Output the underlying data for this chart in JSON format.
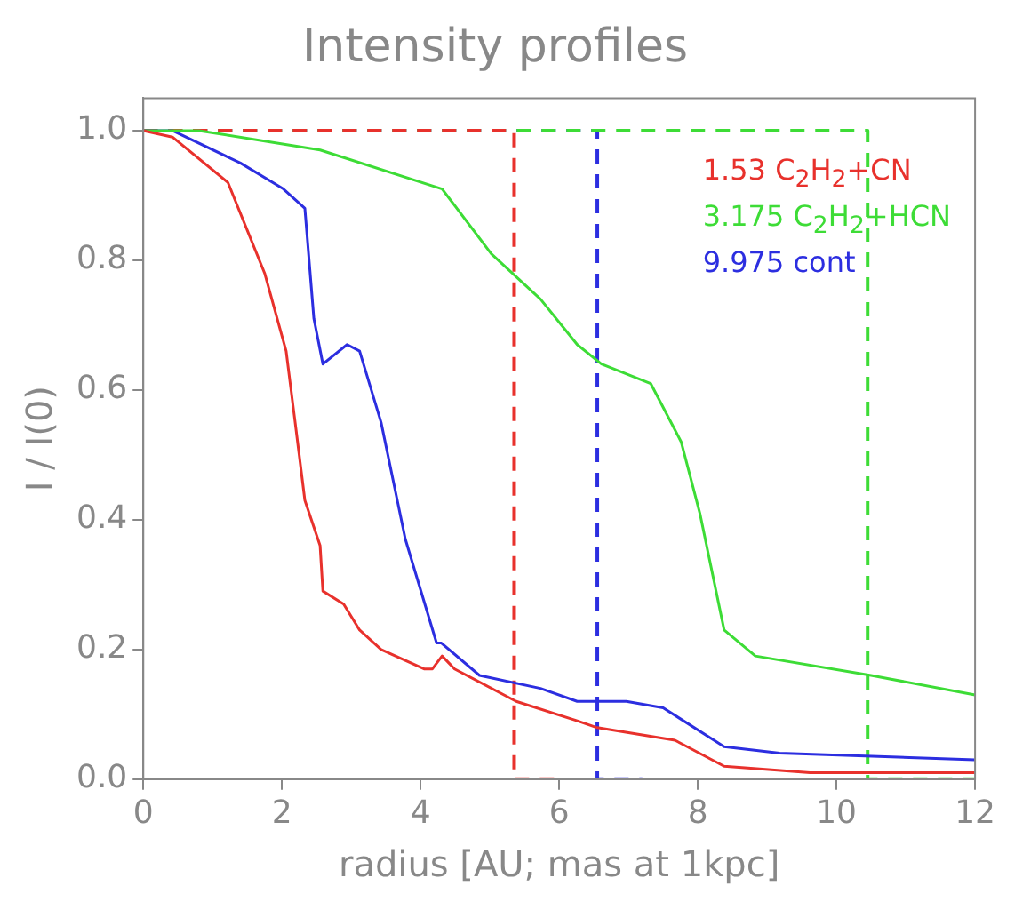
{
  "chart_data": {
    "type": "line",
    "title": "Intensity profiles",
    "xlabel": "radius [AU; mas at 1kpc]",
    "ylabel": "I / I(0)",
    "xlim": [
      0,
      12
    ],
    "xticks": [
      0,
      2,
      4,
      6,
      8,
      10,
      12
    ],
    "ylim": [
      0,
      1.05
    ],
    "yticks": [
      {
        "value": 0,
        "label": "0.0"
      },
      {
        "value": 0.2,
        "label": "0.2"
      },
      {
        "value": 0.4,
        "label": "0.4"
      },
      {
        "value": 0.6,
        "label": "0.6"
      },
      {
        "value": 0.8,
        "label": "0.8"
      },
      {
        "value": 1,
        "label": "1.0"
      }
    ],
    "grid": false,
    "legend": "top right",
    "series": [
      {
        "name": "1.53 C$_{2}$H$_{2}$+CN",
        "color": "#e8312c",
        "line_style": "solid",
        "x": [
          0,
          0.42,
          1.22,
          1.75,
          2.06,
          2.19,
          2.33,
          2.55,
          2.59,
          2.89,
          3.12,
          3.43,
          4.05,
          4.17,
          4.31,
          4.49,
          5.38,
          6.26,
          6.53,
          7.67,
          8.38,
          9.62,
          12
        ],
        "values": [
          1,
          0.99,
          0.92,
          0.78,
          0.66,
          0.55,
          0.43,
          0.36,
          0.29,
          0.27,
          0.23,
          0.2,
          0.17,
          0.17,
          0.19,
          0.17,
          0.12,
          0.09,
          0.08,
          0.06,
          0.02,
          0.01,
          0.01
        ]
      },
      {
        "name": "3.175 C$_{2}$H$_{2}$+HCN",
        "color": "#3ddc36",
        "line_style": "solid",
        "x": [
          0,
          0.8,
          2.55,
          4.31,
          5.02,
          5.73,
          6.26,
          6.61,
          7.32,
          7.76,
          8.03,
          8.38,
          8.83,
          10.5,
          12
        ],
        "values": [
          1,
          1,
          0.97,
          0.91,
          0.81,
          0.74,
          0.67,
          0.64,
          0.61,
          0.52,
          0.41,
          0.23,
          0.19,
          0.16,
          0.13
        ]
      },
      {
        "name": "9.975 cont",
        "color": "#2c2ee0",
        "line_style": "solid",
        "x": [
          0,
          0.42,
          1.4,
          2.02,
          2.33,
          2.46,
          2.59,
          2.94,
          3.12,
          3.43,
          3.78,
          4.23,
          4.3,
          4.85,
          5.73,
          6.26,
          6.97,
          7.5,
          8.38,
          9.18,
          12
        ],
        "values": [
          1,
          1,
          0.95,
          0.91,
          0.88,
          0.71,
          0.64,
          0.67,
          0.66,
          0.55,
          0.37,
          0.21,
          0.21,
          0.16,
          0.14,
          0.12,
          0.12,
          0.11,
          0.05,
          0.04,
          0.03
        ]
      },
      {
        "color": "#e8312c",
        "line_style": "dashed",
        "x": [
          0,
          5.35,
          5.35,
          5.95
        ],
        "values": [
          1,
          1,
          0,
          0
        ]
      },
      {
        "color": "#3ddc36",
        "line_style": "dashed",
        "x": [
          0,
          10.45,
          10.45,
          12
        ],
        "values": [
          1,
          1,
          0,
          0
        ]
      },
      {
        "color": "#2c2ee0",
        "line_style": "dashed",
        "x": [
          0,
          6.55,
          6.55,
          7.2
        ],
        "values": [
          1,
          1,
          0,
          0
        ]
      }
    ]
  }
}
